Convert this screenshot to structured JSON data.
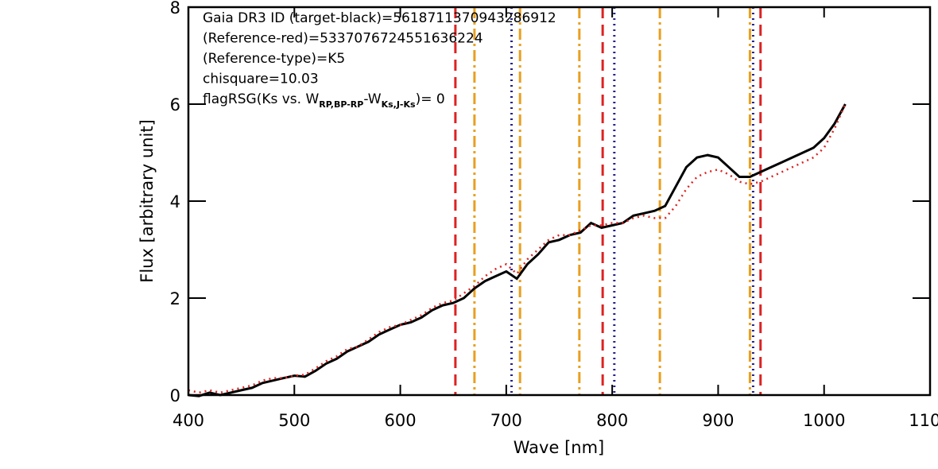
{
  "chart_data": {
    "type": "line",
    "xlabel": "Wave [nm]",
    "ylabel": "Flux [arbitrary unit]",
    "annotations": [
      "Gaia DR3 ID (target-black)=5618711370943286912",
      "(Reference-red)=5337076724551636224",
      "(Reference-type)=K5",
      "chisquare=10.03"
    ],
    "flag_annotation": [
      "flagRSG(Ks vs. W",
      "RP,BP-RP",
      "-W",
      "Ks,J-Ks",
      ")= 0"
    ],
    "xlim": [
      400,
      1100
    ],
    "ylim": [
      0,
      8
    ],
    "xticks": [
      400,
      500,
      600,
      700,
      800,
      900,
      1000,
      1100
    ],
    "yticks": [
      0,
      2,
      4,
      6,
      8
    ],
    "x": [
      400,
      410,
      420,
      430,
      440,
      450,
      460,
      470,
      480,
      490,
      500,
      510,
      520,
      530,
      540,
      550,
      560,
      570,
      580,
      590,
      600,
      610,
      620,
      630,
      640,
      650,
      660,
      670,
      680,
      690,
      700,
      710,
      720,
      730,
      740,
      750,
      760,
      770,
      780,
      790,
      800,
      810,
      820,
      830,
      840,
      850,
      860,
      870,
      880,
      890,
      900,
      910,
      920,
      930,
      940,
      950,
      960,
      970,
      980,
      990,
      1000,
      1010,
      1020
    ],
    "series": [
      {
        "color": "#000000",
        "dash": "solid",
        "values": [
          0.0,
          -0.02,
          0.05,
          0.0,
          0.05,
          0.1,
          0.15,
          0.25,
          0.3,
          0.35,
          0.4,
          0.38,
          0.5,
          0.65,
          0.75,
          0.9,
          1.0,
          1.1,
          1.25,
          1.35,
          1.45,
          1.5,
          1.6,
          1.75,
          1.85,
          1.9,
          2.0,
          2.2,
          2.35,
          2.45,
          2.55,
          2.4,
          2.7,
          2.9,
          3.15,
          3.2,
          3.3,
          3.35,
          3.55,
          3.45,
          3.5,
          3.55,
          3.7,
          3.75,
          3.8,
          3.9,
          4.3,
          4.7,
          4.9,
          4.95,
          4.9,
          4.7,
          4.5,
          4.5,
          4.6,
          4.7,
          4.8,
          4.9,
          5.0,
          5.1,
          5.3,
          5.6,
          6.0
        ]
      },
      {
        "color": "#dd2222",
        "dash": "dotted",
        "values": [
          0.1,
          0.05,
          0.1,
          0.05,
          0.1,
          0.15,
          0.2,
          0.3,
          0.35,
          0.35,
          0.4,
          0.42,
          0.55,
          0.7,
          0.8,
          0.95,
          1.0,
          1.15,
          1.3,
          1.4,
          1.45,
          1.55,
          1.65,
          1.8,
          1.9,
          1.95,
          2.1,
          2.25,
          2.45,
          2.6,
          2.7,
          2.5,
          2.8,
          3.0,
          3.2,
          3.3,
          3.3,
          3.4,
          3.5,
          3.5,
          3.55,
          3.55,
          3.65,
          3.7,
          3.65,
          3.65,
          3.9,
          4.25,
          4.5,
          4.6,
          4.65,
          4.55,
          4.4,
          4.35,
          4.4,
          4.5,
          4.6,
          4.7,
          4.8,
          4.9,
          5.1,
          5.5,
          6.0
        ]
      }
    ],
    "reference_lines": [
      {
        "color": "#dd2222",
        "dash": "dashed",
        "values": [
          652,
          791,
          940
        ]
      },
      {
        "color": "#e8a020",
        "dash": "dashdot",
        "values": [
          670,
          713,
          769,
          845,
          930
        ]
      },
      {
        "color": "#22228a",
        "dash": "dotted",
        "values": [
          705,
          802,
          933
        ]
      }
    ]
  }
}
